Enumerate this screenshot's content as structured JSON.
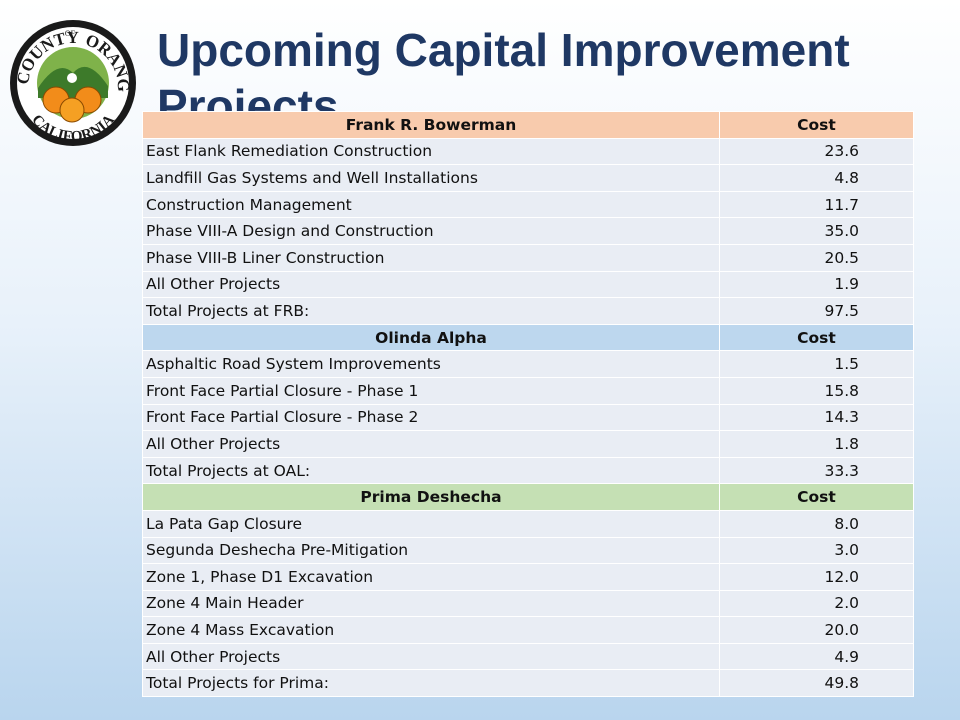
{
  "logo": {
    "top": "COUNTY",
    "of": "OF",
    "right": "ORANGE",
    "bottom": "CALIFORNIA"
  },
  "title": "Upcoming Capital Improvement Projects",
  "table": {
    "sections": [
      {
        "header": [
          "Frank R. Bowerman",
          "Cost"
        ],
        "rows": [
          [
            "East Flank Remediation Construction",
            "23.6"
          ],
          [
            "Landfill Gas Systems and Well Installations",
            "4.8"
          ],
          [
            "Construction Management",
            "11.7"
          ],
          [
            "Phase VIII-A Design and Construction",
            "35.0"
          ],
          [
            "Phase VIII-B Liner Construction",
            "20.5"
          ],
          [
            "All Other Projects",
            "1.9"
          ],
          [
            "Total Projects at FRB:",
            "97.5"
          ]
        ]
      },
      {
        "header": [
          "Olinda Alpha",
          "Cost"
        ],
        "rows": [
          [
            "Asphaltic Road System Improvements",
            "1.5"
          ],
          [
            "Front Face Partial Closure - Phase 1",
            "15.8"
          ],
          [
            "Front Face Partial Closure - Phase 2",
            "14.3"
          ],
          [
            "All Other Projects",
            "1.8"
          ],
          [
            "Total Projects at OAL:",
            "33.3"
          ]
        ]
      },
      {
        "header": [
          "Prima Deshecha",
          "Cost"
        ],
        "rows": [
          [
            "La Pata Gap Closure",
            "8.0"
          ],
          [
            "Segunda Deshecha Pre-Mitigation",
            "3.0"
          ],
          [
            "Zone 1, Phase D1 Excavation",
            "12.0"
          ],
          [
            "Zone 4 Main Header",
            "2.0"
          ],
          [
            "Zone 4 Mass Excavation",
            "20.0"
          ],
          [
            "All Other Projects",
            "4.9"
          ],
          [
            "Total Projects for Prima:",
            "49.8"
          ]
        ]
      }
    ]
  }
}
